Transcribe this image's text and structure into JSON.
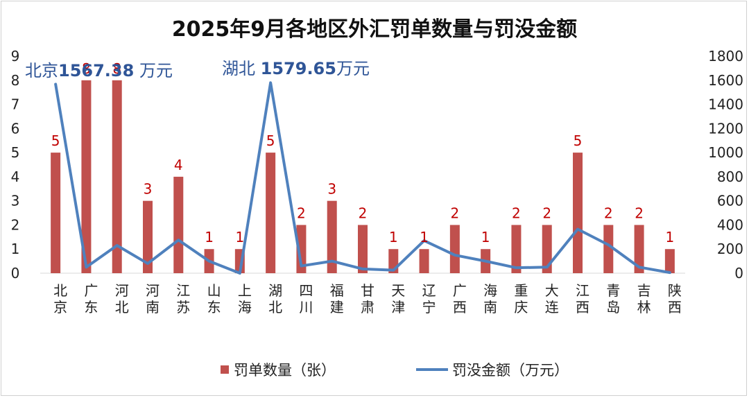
{
  "chart_data": {
    "type": "bar",
    "title": "2025年9月各地区外汇罚单数量与罚没金额",
    "categories": [
      "北京",
      "广东",
      "河北",
      "河南",
      "江苏",
      "山东",
      "上海",
      "湖北",
      "四川",
      "福建",
      "甘肃",
      "天津",
      "辽宁",
      "广西",
      "海南",
      "重庆",
      "大连",
      "江西",
      "青岛",
      "吉林",
      "陕西"
    ],
    "series": [
      {
        "name": "罚单数量（张）",
        "type": "bar",
        "axis": "left",
        "color": "#c0504d",
        "values": [
          5,
          8,
          8,
          3,
          4,
          1,
          1,
          5,
          2,
          3,
          2,
          1,
          1,
          2,
          1,
          2,
          2,
          5,
          2,
          2,
          1
        ]
      },
      {
        "name": "罚没金额（万元）",
        "type": "line",
        "axis": "right",
        "color": "#4f81bd",
        "values": [
          1567.38,
          50,
          230,
          80,
          275,
          100,
          0,
          1579.65,
          60,
          100,
          35,
          25,
          270,
          150,
          100,
          45,
          50,
          365,
          235,
          50,
          5
        ]
      }
    ],
    "y_left": {
      "min": 0,
      "max": 9,
      "step": 1,
      "ticks": [
        "0",
        "1",
        "2",
        "3",
        "4",
        "5",
        "6",
        "7",
        "8",
        "9"
      ]
    },
    "y_right": {
      "min": 0,
      "max": 1800,
      "step": 200,
      "ticks": [
        "0",
        "200",
        "400",
        "600",
        "800",
        "1000",
        "1200",
        "1400",
        "1600",
        "1800"
      ]
    },
    "data_labels": [
      "5",
      "8",
      "8",
      "3",
      "4",
      "1",
      "1",
      "5",
      "2",
      "3",
      "2",
      "1",
      "1",
      "2",
      "1",
      "2",
      "2",
      "5",
      "2",
      "2",
      "1"
    ],
    "annotations": [
      {
        "region": "北京",
        "prefix": "北京",
        "number": "1567.38",
        "suffix": " 万元"
      },
      {
        "region": "湖北",
        "prefix": "湖北 ",
        "number": "1579.65",
        "suffix": "万元"
      }
    ],
    "grid": false,
    "legend_position": "bottom",
    "legend": [
      "罚单数量（张）",
      "罚没金额（万元）"
    ]
  }
}
